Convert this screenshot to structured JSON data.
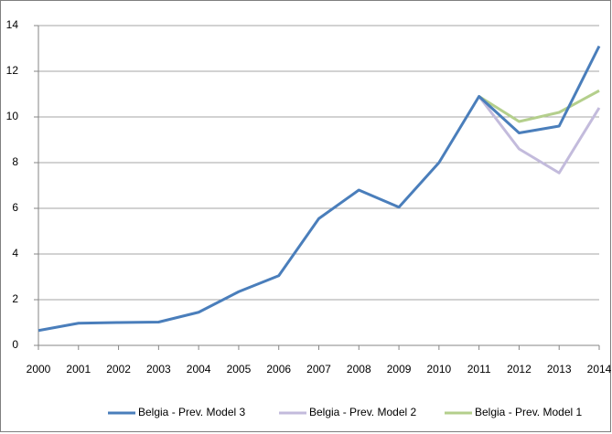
{
  "chart_data": {
    "type": "line",
    "categories": [
      "2000",
      "2001",
      "2002",
      "2003",
      "2004",
      "2005",
      "2006",
      "2007",
      "2008",
      "2009",
      "2010",
      "2011",
      "2012",
      "2013",
      "2014"
    ],
    "series": [
      {
        "name": "Belgia  - Prev. Model 3",
        "color": "#4a7ebb",
        "values": [
          0.65,
          0.97,
          1.0,
          1.02,
          1.45,
          2.35,
          3.05,
          5.55,
          6.8,
          6.05,
          8.0,
          10.9,
          9.3,
          9.6,
          13.1
        ]
      },
      {
        "name": "Belgia - Prev. Model 2",
        "color": "#c3bbdc",
        "values": [
          null,
          null,
          null,
          null,
          null,
          null,
          null,
          null,
          null,
          null,
          null,
          10.9,
          8.6,
          7.55,
          10.4
        ]
      },
      {
        "name": "Belgia - Prev. Model 1",
        "color": "#b4cf8c",
        "values": [
          null,
          null,
          null,
          null,
          null,
          null,
          null,
          null,
          null,
          null,
          null,
          10.9,
          9.8,
          10.2,
          11.15
        ]
      }
    ],
    "ylim": [
      0,
      14
    ],
    "yticks": [
      0,
      2,
      4,
      6,
      8,
      10,
      12,
      14
    ],
    "grid": true,
    "legend": "bottom"
  }
}
